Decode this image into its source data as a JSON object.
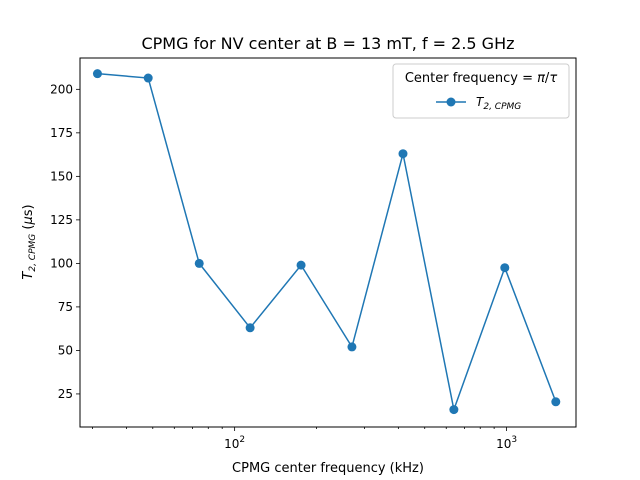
{
  "colors": {
    "series": "#1f77b4",
    "axes": "#000000",
    "background": "#ffffff",
    "legend_border": "#cccccc"
  },
  "chart_data": {
    "type": "line",
    "title": "CPMG for NV center at B = 13 mT, f = 2.5 GHz",
    "xlabel": "CPMG center frequency (kHz)",
    "ylabel": "T_{2,CPMG} (µs)",
    "xscale": "log",
    "xlim": [
      27,
      1800
    ],
    "ylim": [
      6,
      218
    ],
    "x_ticks": [
      {
        "value": 100,
        "base": "10",
        "exp": "2"
      },
      {
        "value": 1000,
        "base": "10",
        "exp": "3"
      }
    ],
    "y_ticks": [
      25,
      50,
      75,
      100,
      125,
      150,
      175,
      200
    ],
    "grid": false,
    "legend": {
      "title": "Center frequency = π/τ",
      "placement": "upper right",
      "entries": [
        "T2,CPMG"
      ]
    },
    "series": [
      {
        "name": "T2,CPMG",
        "marker": "circle",
        "x": [
          31.3,
          48.1,
          74.1,
          114,
          175.5,
          270,
          416,
          640,
          985,
          1517
        ],
        "y": [
          209,
          206.5,
          100,
          63,
          99,
          52,
          163,
          16,
          97.5,
          20.5
        ]
      }
    ]
  }
}
